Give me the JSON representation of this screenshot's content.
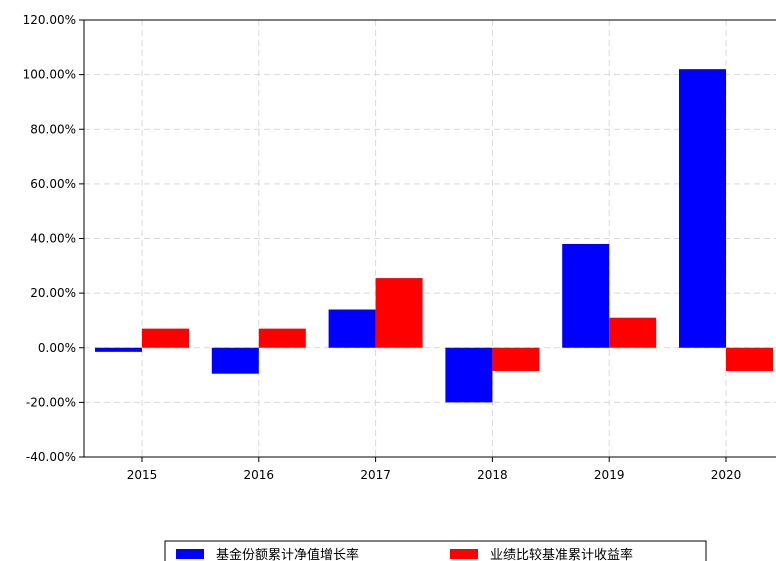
{
  "chart_data": {
    "type": "bar",
    "categories": [
      "2015",
      "2016",
      "2017",
      "2018",
      "2019",
      "2020"
    ],
    "series": [
      {
        "name": "基金份额累计净值增长率",
        "color": "#0000ff",
        "values": [
          -1.5,
          -9.5,
          14.0,
          -20.0,
          38.0,
          102.0
        ]
      },
      {
        "name": "业绩比较基准累计收益率",
        "color": "#ff0000",
        "values": [
          7.0,
          7.0,
          25.5,
          -8.5,
          11.0,
          -8.5
        ]
      }
    ],
    "y_ticks": [
      "120.00%",
      "100.00%",
      "80.00%",
      "60.00%",
      "40.00%",
      "20.00%",
      "0.00%",
      "-20.00%",
      "-40.00%"
    ],
    "ylim": [
      -40,
      120
    ],
    "y_tick_values": [
      120,
      100,
      80,
      60,
      40,
      20,
      0,
      -20,
      -40
    ],
    "grid": true,
    "legend_position": "bottom-center"
  }
}
